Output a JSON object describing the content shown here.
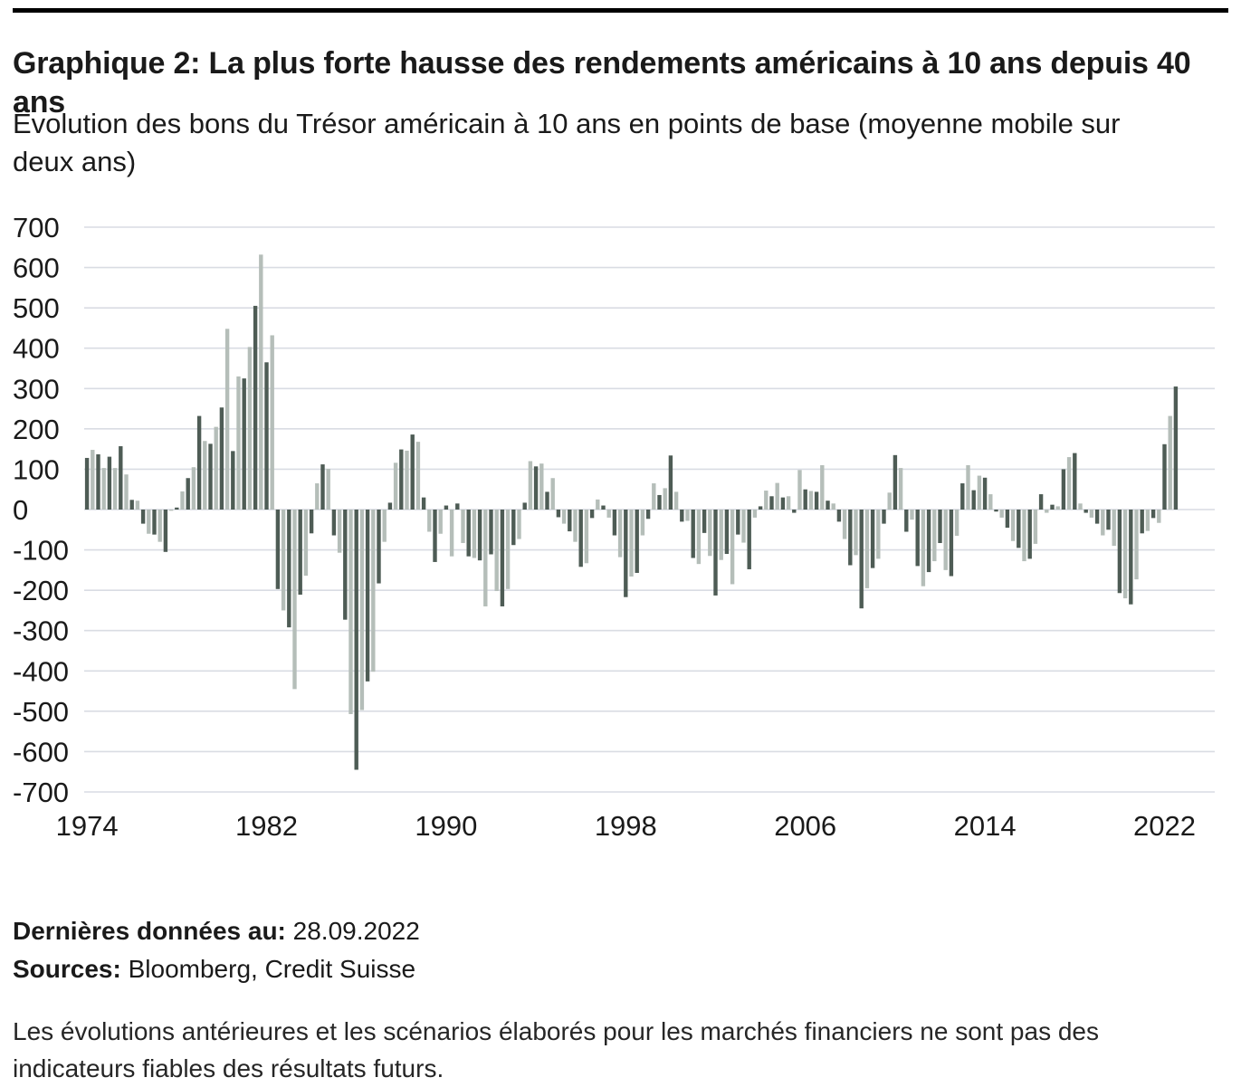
{
  "header": {
    "title": "Graphique 2: La plus forte hausse des rendements américains à 10 ans depuis 40 ans",
    "subtitle": "Évolution des bons du Trésor américain à 10 ans en points de base (moyenne mobile sur deux ans)"
  },
  "footer": {
    "last_data_label": "Dernières données au:",
    "last_data_value": "28.09.2022",
    "sources_label": "Sources:",
    "sources_value": "Bloomberg, Credit Suisse",
    "disclaimer": "Les évolutions antérieures et les scénarios élaborés pour les marchés financiers ne sont pas des indicateurs fiables des résultats futurs."
  },
  "colors": {
    "bar_dark": "#4e5c55",
    "bar_light": "#b5beb9",
    "gridline": "#d9dce3",
    "text": "#1a1a1a",
    "top_rule": "#000000"
  },
  "chart_data": {
    "type": "bar",
    "title": "Évolution des bons du Trésor américain à 10 ans en points de base (moyenne mobile sur deux ans)",
    "unit": "points de base",
    "frequency": "quarterly",
    "x_start": "1974Q1",
    "x_end": "2022Q3",
    "ylim": [
      -700,
      700
    ],
    "y_ticks": [
      700,
      600,
      500,
      400,
      300,
      200,
      100,
      0,
      -100,
      -200,
      -300,
      -400,
      -500,
      -600,
      -700
    ],
    "x_tick_labels": [
      "1974",
      "1982",
      "1990",
      "1998",
      "2006",
      "2014",
      "2022"
    ],
    "grid": "horizontal",
    "legend": "none",
    "values": [
      128,
      148,
      137,
      103,
      131,
      103,
      157,
      87,
      24,
      22,
      -35,
      -60,
      -62,
      -80,
      -105,
      -3,
      5,
      45,
      78,
      105,
      232,
      170,
      163,
      205,
      253,
      448,
      145,
      330,
      325,
      403,
      505,
      632,
      365,
      432,
      -197,
      -250,
      -292,
      -445,
      -211,
      -164,
      -59,
      65,
      112,
      101,
      -64,
      -107,
      -273,
      -507,
      -645,
      -497,
      -426,
      -402,
      -183,
      -80,
      17,
      116,
      149,
      146,
      186,
      168,
      30,
      -55,
      -130,
      -60,
      10,
      -116,
      15,
      -83,
      -116,
      -120,
      -126,
      -240,
      -111,
      -202,
      -240,
      -197,
      -88,
      -73,
      17,
      120,
      107,
      114,
      44,
      78,
      -19,
      -35,
      -54,
      -80,
      -142,
      -133,
      -21,
      25,
      10,
      -20,
      -64,
      -118,
      -217,
      -166,
      -157,
      -64,
      -23,
      65,
      36,
      53,
      134,
      44,
      -30,
      -28,
      -120,
      -135,
      -58,
      -115,
      -213,
      -125,
      -110,
      -185,
      -62,
      -82,
      -148,
      -20,
      8,
      47,
      33,
      66,
      30,
      33,
      -8,
      98,
      50,
      46,
      44,
      110,
      22,
      15,
      -30,
      -73,
      -138,
      -113,
      -245,
      -195,
      -145,
      -122,
      -35,
      42,
      135,
      103,
      -55,
      -25,
      -140,
      -190,
      -155,
      -128,
      -83,
      -150,
      -165,
      -65,
      65,
      110,
      48,
      84,
      79,
      38,
      -5,
      -20,
      -45,
      -78,
      -95,
      -128,
      -122,
      -85,
      38,
      -8,
      12,
      8,
      100,
      130,
      140,
      15,
      -8,
      -20,
      -35,
      -64,
      -50,
      -90,
      -207,
      -220,
      -235,
      -173,
      -59,
      -53,
      -21,
      -33,
      162,
      232,
      305
    ]
  }
}
